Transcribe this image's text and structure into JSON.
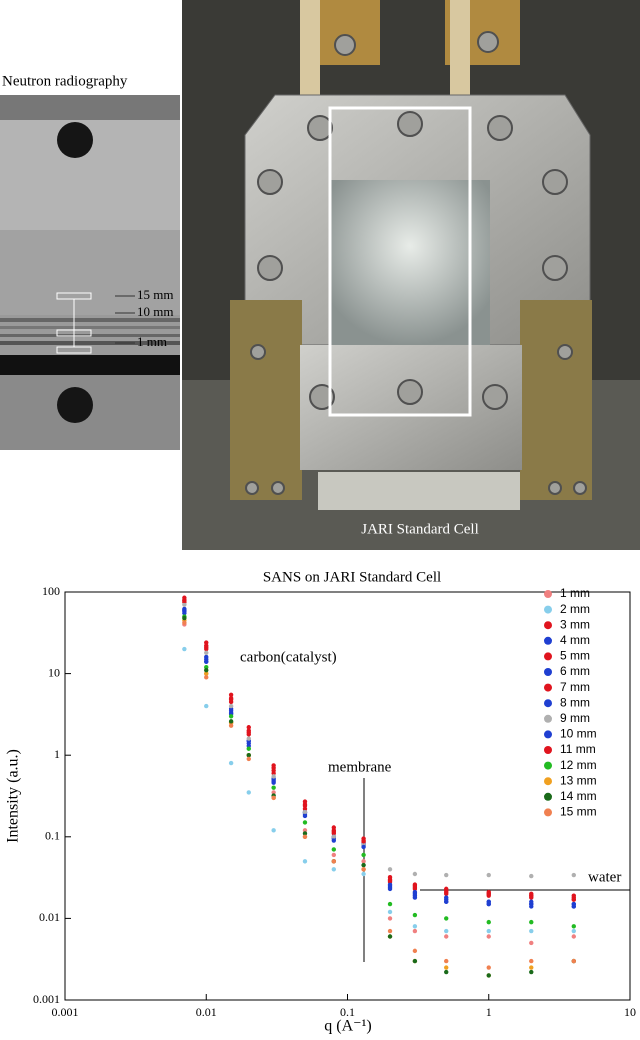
{
  "radiography": {
    "title": "Neutron radiography",
    "labels": [
      "15 mm",
      "10 mm",
      "1 mm"
    ]
  },
  "photo": {
    "caption": "JARI Standard Cell"
  },
  "chart_data": {
    "type": "scatter",
    "title": "SANS on  JARI Standard Cell",
    "x_label": "q (A⁻¹)",
    "y_label": "Intensity (a.u.)",
    "xscale": "log",
    "yscale": "log",
    "xlim": [
      0.001,
      10
    ],
    "ylim": [
      0.001,
      100
    ],
    "xticks": [
      0.001,
      0.01,
      0.1,
      1,
      10
    ],
    "yticks": [
      0.001,
      0.01,
      0.1,
      1,
      10,
      100
    ],
    "legend": "top-right",
    "annotations": [
      "carbon(catalyst)",
      "membrane",
      "water"
    ],
    "x": [
      0.007,
      0.01,
      0.015,
      0.02,
      0.03,
      0.05,
      0.08,
      0.13,
      0.2,
      0.3,
      0.5,
      1,
      2,
      4
    ],
    "series": [
      {
        "name": "1 mm",
        "color": "#f08080",
        "values": [
          40,
          10,
          2.5,
          1,
          0.35,
          0.12,
          0.06,
          0.05,
          0.01,
          0.007,
          0.006,
          0.006,
          0.005,
          0.006
        ]
      },
      {
        "name": "2 mm",
        "color": "#87ceeb",
        "values": [
          20,
          4,
          0.8,
          0.35,
          0.12,
          0.05,
          0.04,
          0.035,
          0.012,
          0.008,
          0.007,
          0.007,
          0.007,
          0.007
        ]
      },
      {
        "name": "3 mm",
        "color": "#e0141e",
        "values": [
          80,
          22,
          5,
          2,
          0.7,
          0.25,
          0.12,
          0.09,
          0.03,
          0.025,
          0.022,
          0.02,
          0.019,
          0.018
        ]
      },
      {
        "name": "4 mm",
        "color": "#1f3fd1",
        "values": [
          60,
          15,
          3.5,
          1.5,
          0.5,
          0.2,
          0.1,
          0.08,
          0.025,
          0.02,
          0.017,
          0.016,
          0.015,
          0.015
        ]
      },
      {
        "name": "5 mm",
        "color": "#e0141e",
        "values": [
          75,
          20,
          4.5,
          1.8,
          0.6,
          0.22,
          0.11,
          0.085,
          0.028,
          0.023,
          0.02,
          0.019,
          0.018,
          0.017
        ]
      },
      {
        "name": "6 mm",
        "color": "#1f3fd1",
        "values": [
          58,
          14,
          3.3,
          1.4,
          0.48,
          0.19,
          0.095,
          0.078,
          0.024,
          0.019,
          0.016,
          0.015,
          0.015,
          0.014
        ]
      },
      {
        "name": "7 mm",
        "color": "#e0141e",
        "values": [
          85,
          24,
          5.5,
          2.2,
          0.75,
          0.27,
          0.13,
          0.095,
          0.032,
          0.026,
          0.023,
          0.021,
          0.02,
          0.019
        ]
      },
      {
        "name": "8 mm",
        "color": "#1f3fd1",
        "values": [
          62,
          16,
          3.7,
          1.5,
          0.52,
          0.2,
          0.1,
          0.082,
          0.026,
          0.021,
          0.018,
          0.016,
          0.016,
          0.015
        ]
      },
      {
        "name": "9 mm",
        "color": "#b0b0b0",
        "values": [
          70,
          18,
          4,
          1.6,
          0.55,
          0.2,
          0.1,
          0.08,
          0.04,
          0.035,
          0.034,
          0.034,
          0.033,
          0.034
        ]
      },
      {
        "name": "10 mm",
        "color": "#1f3fd1",
        "values": [
          55,
          14,
          3.2,
          1.3,
          0.46,
          0.18,
          0.09,
          0.075,
          0.023,
          0.018,
          0.016,
          0.015,
          0.014,
          0.014
        ]
      },
      {
        "name": "11 mm",
        "color": "#e0141e",
        "values": [
          78,
          21,
          4.8,
          1.9,
          0.65,
          0.24,
          0.115,
          0.088,
          0.029,
          0.024,
          0.021,
          0.02,
          0.019,
          0.017
        ]
      },
      {
        "name": "12 mm",
        "color": "#22bb22",
        "values": [
          50,
          12,
          3,
          1.2,
          0.4,
          0.15,
          0.07,
          0.06,
          0.015,
          0.011,
          0.01,
          0.009,
          0.009,
          0.008
        ]
      },
      {
        "name": "13 mm",
        "color": "#f0a020",
        "values": [
          45,
          10,
          2.5,
          1,
          0.3,
          0.1,
          0.05,
          0.04,
          0.006,
          0.003,
          0.0025,
          0.002,
          0.0025,
          0.003
        ]
      },
      {
        "name": "14 mm",
        "color": "#1a6a1a",
        "values": [
          48,
          11,
          2.6,
          1,
          0.32,
          0.11,
          0.05,
          0.045,
          0.006,
          0.003,
          0.0022,
          0.002,
          0.0022,
          0.003
        ]
      },
      {
        "name": "15 mm",
        "color": "#f08050",
        "values": [
          42,
          9,
          2.3,
          0.9,
          0.3,
          0.1,
          0.05,
          0.04,
          0.007,
          0.004,
          0.003,
          0.0025,
          0.003,
          0.003
        ]
      }
    ]
  }
}
